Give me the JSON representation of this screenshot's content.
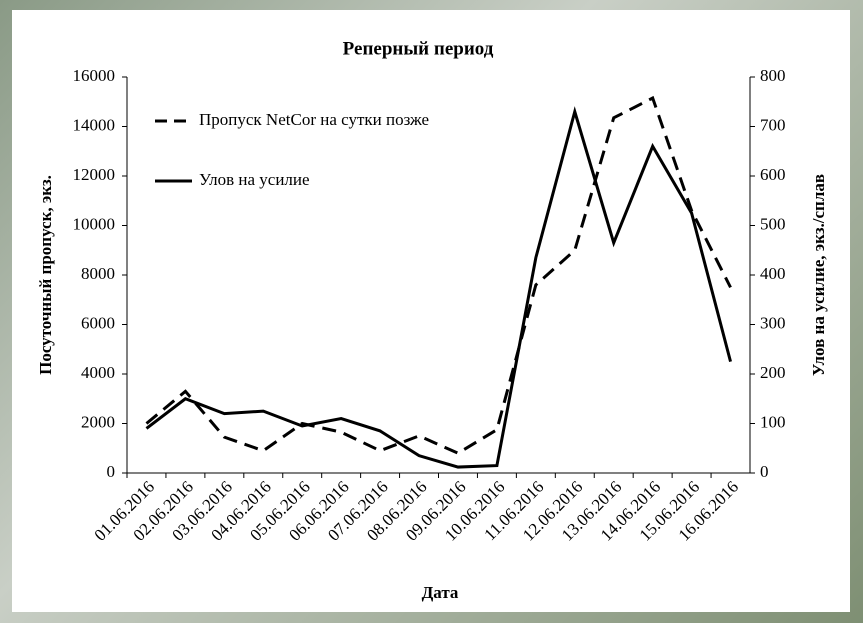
{
  "chart_data": {
    "type": "line",
    "title": "Реперный период",
    "x_label": "Дата",
    "y_label": "Посуточный пропуск, экз.",
    "y2_label": "Улов на усилие, экз./сплав",
    "categories": [
      "01.06.2016",
      "02.06.2016",
      "03.06.2016",
      "04.06.2016",
      "05.06.2016",
      "06.06.2016",
      "07.06.2016",
      "08.06.2016",
      "09.06.2016",
      "10.06.2016",
      "11.06.2016",
      "12.06.2016",
      "13.06.2016",
      "14.06.2016",
      "15.06.2016",
      "16.06.2016"
    ],
    "series": [
      {
        "name": "Пропуск NetCor на сутки позже",
        "color": "#000000",
        "dash": true,
        "values": [
          2000,
          3300,
          1450,
          900,
          2000,
          1650,
          900,
          1500,
          800,
          1750,
          7600,
          9000,
          14350,
          15150,
          10600,
          7500
        ]
      },
      {
        "name": "Улов на усилие",
        "color": "#000000",
        "dash": false,
        "axis": "y2",
        "values": [
          90,
          150,
          120,
          125,
          95,
          110,
          85,
          35,
          12,
          15,
          435,
          730,
          465,
          660,
          525,
          225
        ]
      }
    ],
    "ylim": [
      0,
      16000
    ],
    "yticks": [
      0,
      2000,
      4000,
      6000,
      8000,
      10000,
      12000,
      14000,
      16000
    ],
    "y2lim": [
      0,
      800
    ],
    "y2ticks": [
      0,
      100,
      200,
      300,
      400,
      500,
      600,
      700,
      800
    ],
    "grid": false
  }
}
